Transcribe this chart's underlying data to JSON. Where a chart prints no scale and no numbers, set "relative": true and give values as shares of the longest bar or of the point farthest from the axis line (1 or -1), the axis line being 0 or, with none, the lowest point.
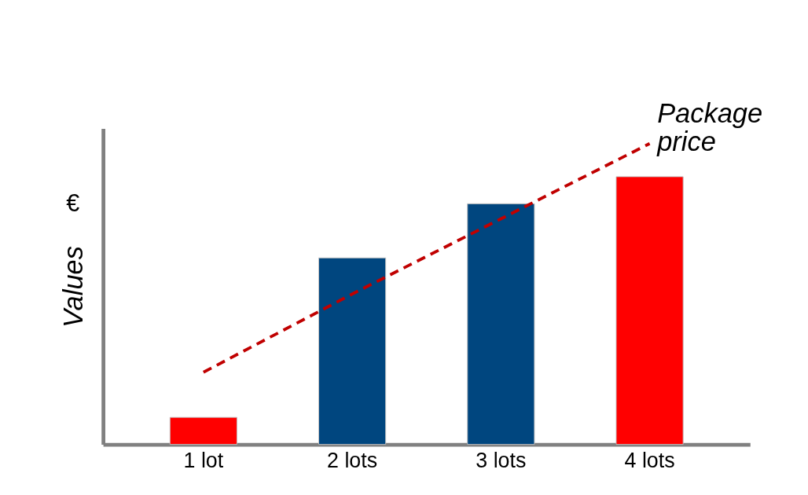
{
  "chart_data": {
    "type": "bar",
    "ylabel": "Values",
    "categories": [
      "1 lot",
      "2 lots",
      "3 lots",
      "4 lots"
    ],
    "relative": true,
    "series": [
      {
        "colors": [
          "#ff0000",
          "#00467f",
          "#00467f",
          "#ff0000"
        ],
        "values": [
          0.09,
          0.62,
          0.8,
          0.89
        ]
      },
      {
        "type": "line",
        "name": "Package price",
        "color": "#c00000",
        "line_style": "dashed",
        "values": [
          0.24,
          0.5,
          0.75,
          1.0
        ]
      }
    ],
    "annotations": [
      "€"
    ]
  }
}
